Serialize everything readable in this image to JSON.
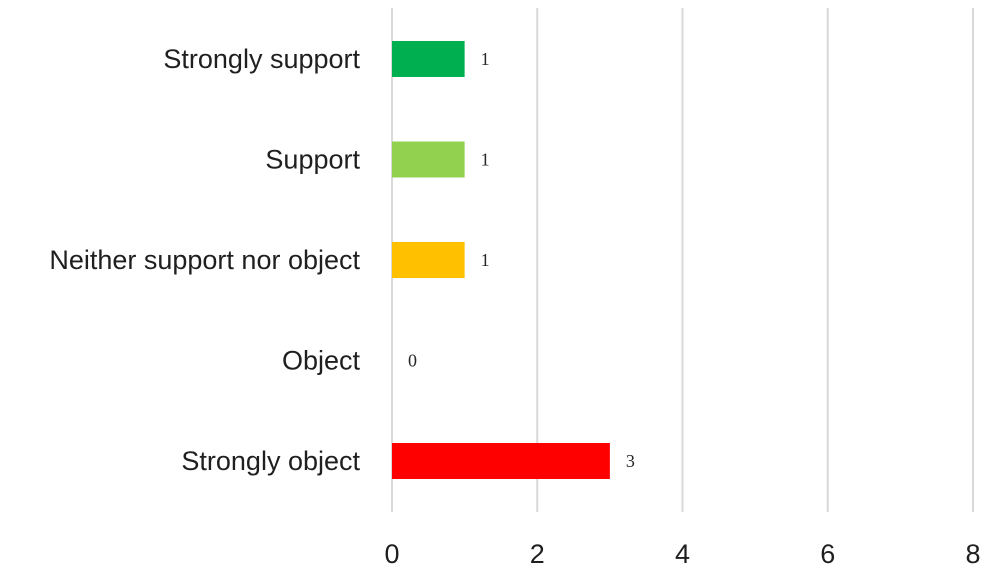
{
  "chart_data": {
    "type": "bar",
    "orientation": "horizontal",
    "categories": [
      "Strongly support",
      "Support",
      "Neither support nor object",
      "Object",
      "Strongly object"
    ],
    "values": [
      1,
      1,
      1,
      0,
      3
    ],
    "data_labels": [
      "1",
      "1",
      "1",
      "0",
      "3"
    ],
    "colors": [
      "#00b050",
      "#92d050",
      "#ffc000",
      "#ff9900",
      "#ff0000"
    ],
    "xlim": [
      0,
      8
    ],
    "x_ticks": [
      0,
      2,
      4,
      6,
      8
    ],
    "x_tick_labels": [
      "0",
      "2",
      "4",
      "6",
      "8"
    ],
    "gridlines": true,
    "title": "",
    "xlabel": "",
    "ylabel": "",
    "legend": "none"
  }
}
